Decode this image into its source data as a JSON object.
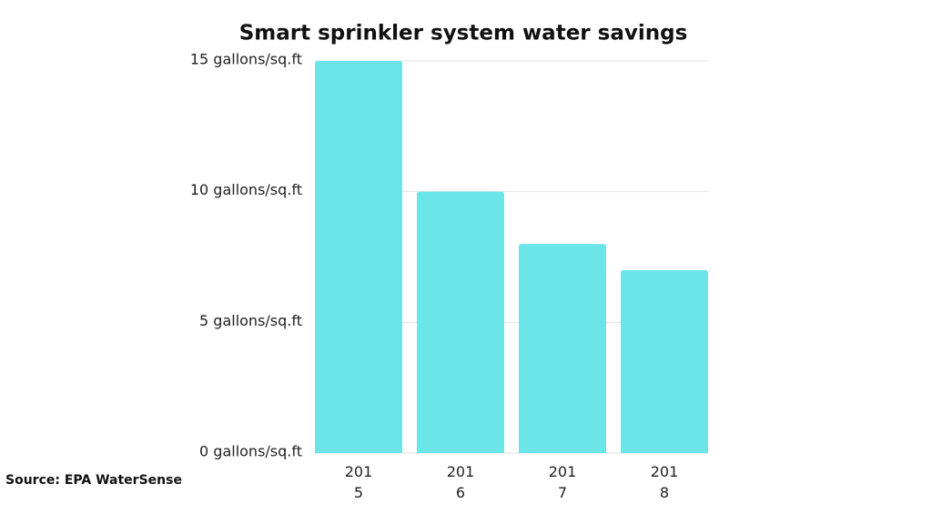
{
  "chart_data": {
    "type": "bar",
    "title": "Smart sprinkler system water savings",
    "categories": [
      "2015",
      "2016",
      "2017",
      "2018"
    ],
    "values": [
      15,
      10,
      8,
      7
    ],
    "color": "#6ce5e8",
    "ylim": [
      0,
      15
    ],
    "yticks": [
      {
        "value": 0,
        "label": "0 gallons/sq.ft"
      },
      {
        "value": 5,
        "label": "5 gallons/sq.ft"
      },
      {
        "value": 10,
        "label": "10 gallons/sq.ft"
      },
      {
        "value": 15,
        "label": "15 gallons/sq.ft"
      }
    ],
    "grid": true,
    "source": "Source: EPA WaterSense"
  }
}
